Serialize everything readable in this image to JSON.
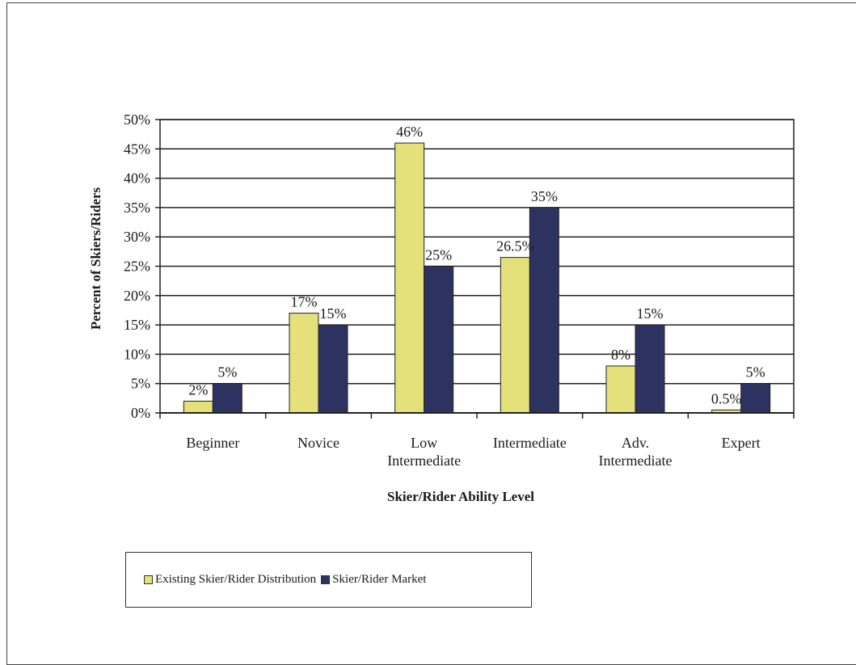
{
  "chart_data": {
    "type": "bar",
    "categories": [
      [
        "Beginner"
      ],
      [
        "Novice"
      ],
      [
        "Low",
        "Intermediate"
      ],
      [
        "Intermediate"
      ],
      [
        "Adv.",
        "Intermediate"
      ],
      [
        "Expert"
      ]
    ],
    "series": [
      {
        "name": "Existing Skier/Rider Distribution",
        "values": [
          2,
          17,
          46,
          26.5,
          8,
          0.5
        ],
        "labels": [
          "2%",
          "17%",
          "46%",
          "26.5%",
          "8%",
          "0.5%"
        ],
        "color": "#e4e07a"
      },
      {
        "name": "Skier/Rider Market",
        "values": [
          5,
          15,
          25,
          35,
          15,
          5
        ],
        "labels": [
          "5%",
          "15%",
          "25%",
          "35%",
          "15%",
          "5%"
        ],
        "color": "#2d3360"
      }
    ],
    "xlabel": "Skier/Rider Ability Level",
    "ylabel": "Percent of Skiers/Riders",
    "ylim": [
      0,
      50
    ],
    "yticks": [
      "0%",
      "5%",
      "10%",
      "15%",
      "20%",
      "25%",
      "30%",
      "35%",
      "40%",
      "45%",
      "50%"
    ],
    "grid": true,
    "legend_position": "bottom-left"
  }
}
